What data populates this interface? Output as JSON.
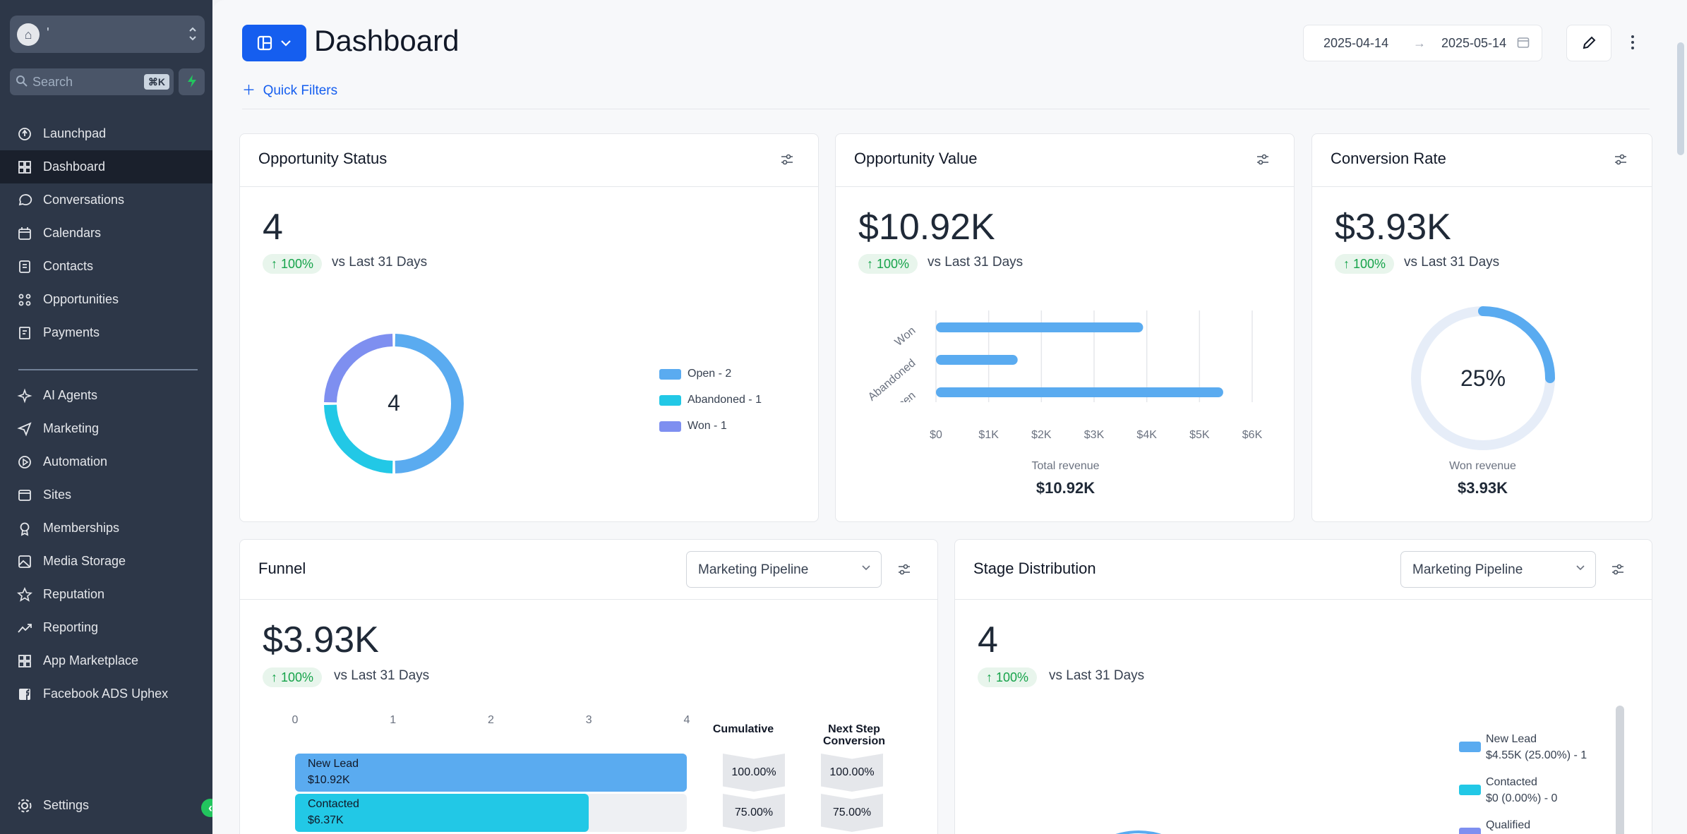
{
  "sidebar": {
    "account_name": "'",
    "search_placeholder": "Search",
    "search_shortcut": "⌘K",
    "nav": [
      {
        "label": "Launchpad",
        "icon": "launchpad-icon",
        "active": false
      },
      {
        "label": "Dashboard",
        "icon": "dashboard-icon",
        "active": true
      },
      {
        "label": "Conversations",
        "icon": "chat-icon",
        "active": false
      },
      {
        "label": "Calendars",
        "icon": "calendar-icon",
        "active": false
      },
      {
        "label": "Contacts",
        "icon": "contacts-icon",
        "active": false
      },
      {
        "label": "Opportunities",
        "icon": "opportunities-icon",
        "active": false
      },
      {
        "label": "Payments",
        "icon": "payments-icon",
        "active": false
      },
      {
        "label": "AI Agents",
        "icon": "sparkle-icon",
        "active": false
      },
      {
        "label": "Marketing",
        "icon": "send-icon",
        "active": false
      },
      {
        "label": "Automation",
        "icon": "automation-icon",
        "active": false
      },
      {
        "label": "Sites",
        "icon": "sites-icon",
        "active": false
      },
      {
        "label": "Memberships",
        "icon": "membership-icon",
        "active": false
      },
      {
        "label": "Media Storage",
        "icon": "image-icon",
        "active": false
      },
      {
        "label": "Reputation",
        "icon": "star-icon",
        "active": false
      },
      {
        "label": "Reporting",
        "icon": "trend-icon",
        "active": false
      },
      {
        "label": "App Marketplace",
        "icon": "grid-icon",
        "active": false
      },
      {
        "label": "Facebook ADS Uphex",
        "icon": "facebook-icon",
        "active": false
      }
    ],
    "settings_label": "Settings"
  },
  "header": {
    "title": "Dashboard",
    "quick_filters": "Quick Filters",
    "date_start": "2025-04-14",
    "date_end": "2025-05-14"
  },
  "opportunity_status": {
    "title": "Opportunity Status",
    "value": "4",
    "change": "100%",
    "comparison": "vs Last 31 Days",
    "center_label": "4",
    "legend": [
      "Open - 2",
      "Abandoned - 1",
      "Won - 1"
    ]
  },
  "opportunity_value": {
    "title": "Opportunity Value",
    "value": "$10.92K",
    "change": "100%",
    "comparison": "vs Last 31 Days",
    "caption": "Total revenue",
    "caption_value": "$10.92K"
  },
  "conversion_rate": {
    "title": "Conversion Rate",
    "value": "$3.93K",
    "change": "100%",
    "comparison": "vs Last 31 Days",
    "gauge_label": "25%",
    "gauge_fraction": 0.25,
    "caption": "Won revenue",
    "caption_value": "$3.93K"
  },
  "funnel": {
    "title": "Funnel",
    "pipeline": "Marketing Pipeline",
    "value": "$3.93K",
    "change": "100%",
    "comparison": "vs Last 31 Days",
    "axis_ticks": [
      "0",
      "1",
      "2",
      "3",
      "4"
    ],
    "col_cumulative": "Cumulative",
    "col_next": "Next Step Conversion",
    "stages": [
      {
        "name": "New Lead",
        "value": "$10.92K",
        "count": 4,
        "cumulative": "100.00%",
        "next": "100.00%"
      },
      {
        "name": "Contacted",
        "value": "$6.37K",
        "count": 3,
        "cumulative": "75.00%",
        "next": "75.00%"
      }
    ]
  },
  "stage_distribution": {
    "title": "Stage Distribution",
    "pipeline": "Marketing Pipeline",
    "value": "4",
    "change": "100%",
    "comparison": "vs Last 31 Days",
    "legend": [
      {
        "name": "New Lead",
        "detail": "$4.55K (25.00%) - 1",
        "color": "#5aabf0"
      },
      {
        "name": "Contacted",
        "detail": "$0 (0.00%) - 0",
        "color": "#22c8e6"
      },
      {
        "name": "Qualified",
        "detail": "",
        "color": "#7e8ff0"
      }
    ]
  },
  "chart_data": [
    {
      "type": "pie",
      "title": "Opportunity Status",
      "categories": [
        "Open",
        "Abandoned",
        "Won"
      ],
      "values": [
        2,
        1,
        1
      ],
      "colors": [
        "#5aabf0",
        "#22c8e6",
        "#7e8ff0"
      ],
      "legend": "right"
    },
    {
      "type": "bar",
      "orientation": "horizontal",
      "categories": [
        "Won",
        "Abandoned",
        "Open"
      ],
      "values": [
        3930,
        1550,
        5450
      ],
      "x_ticks": [
        "$0",
        "$1K",
        "$2K",
        "$3K",
        "$4K",
        "$5K",
        "$6K"
      ],
      "xlim": [
        0,
        6000
      ],
      "grid": true,
      "color": "#5aabf0"
    },
    {
      "type": "bar",
      "orientation": "horizontal",
      "categories": [
        "New Lead",
        "Contacted"
      ],
      "values": [
        4,
        3
      ],
      "xlim": [
        0,
        4
      ],
      "colors": [
        "#5aabf0",
        "#22c8e6"
      ]
    }
  ]
}
